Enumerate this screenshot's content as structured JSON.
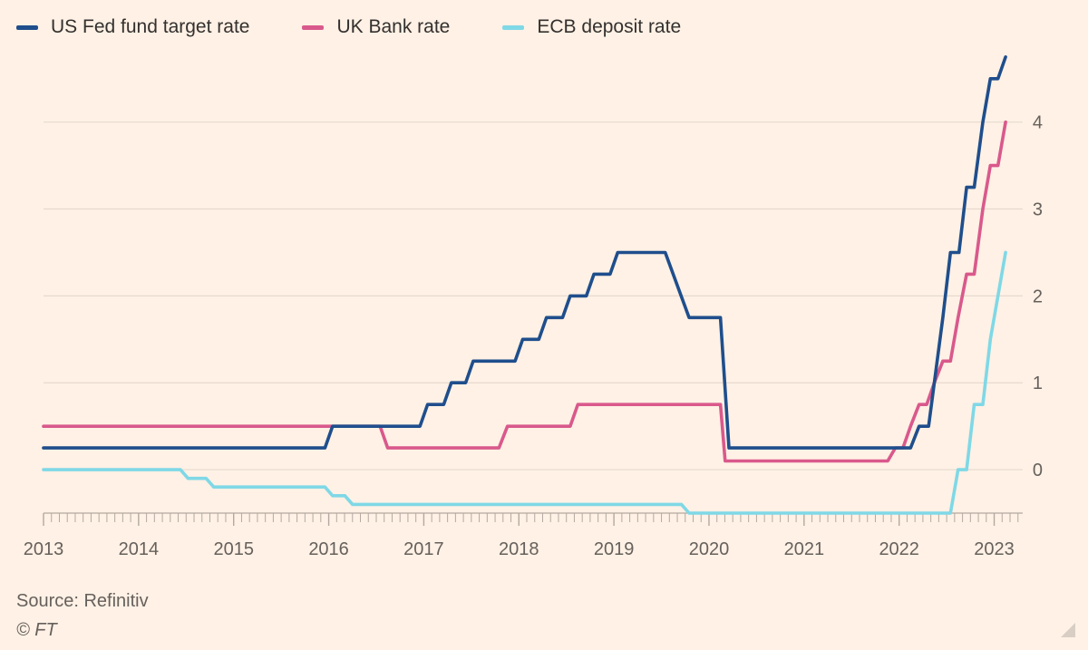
{
  "colors": {
    "background": "#FFF1E5",
    "grid": "#E6D9CE",
    "axis": "#B3A9A0",
    "text": "#66605C"
  },
  "legend": [
    {
      "name": "US Fed fund target rate",
      "color": "#1F4E8C"
    },
    {
      "name": "UK Bank rate",
      "color": "#D9598C"
    },
    {
      "name": "ECB deposit rate",
      "color": "#7FD8E6"
    }
  ],
  "source": "Source: Refinitiv",
  "copyright": "© FT",
  "chart_data": {
    "type": "line",
    "title": "",
    "xlabel": "",
    "ylabel": "",
    "xlim": [
      2013.0,
      2023.3
    ],
    "ylim": [
      -0.5,
      4.8
    ],
    "x_ticks": [
      2013,
      2014,
      2015,
      2016,
      2017,
      2018,
      2019,
      2020,
      2021,
      2022,
      2023
    ],
    "y_ticks": [
      0,
      1,
      2,
      3,
      4
    ],
    "grid": true,
    "legend_position": "top-left",
    "series": [
      {
        "name": "US Fed fund target rate",
        "color": "#1F4E8C",
        "points": [
          [
            2013.0,
            0.25
          ],
          [
            2015.96,
            0.25
          ],
          [
            2016.04,
            0.5
          ],
          [
            2016.96,
            0.5
          ],
          [
            2017.04,
            0.75
          ],
          [
            2017.21,
            0.75
          ],
          [
            2017.29,
            1.0
          ],
          [
            2017.44,
            1.0
          ],
          [
            2017.52,
            1.25
          ],
          [
            2017.96,
            1.25
          ],
          [
            2018.04,
            1.5
          ],
          [
            2018.21,
            1.5
          ],
          [
            2018.29,
            1.75
          ],
          [
            2018.46,
            1.75
          ],
          [
            2018.54,
            2.0
          ],
          [
            2018.71,
            2.0
          ],
          [
            2018.79,
            2.25
          ],
          [
            2018.96,
            2.25
          ],
          [
            2019.04,
            2.5
          ],
          [
            2019.54,
            2.5
          ],
          [
            2019.79,
            1.75
          ],
          [
            2020.12,
            1.75
          ],
          [
            2020.21,
            0.25
          ],
          [
            2022.12,
            0.25
          ],
          [
            2022.21,
            0.5
          ],
          [
            2022.31,
            0.5
          ],
          [
            2022.46,
            1.75
          ],
          [
            2022.54,
            2.5
          ],
          [
            2022.63,
            2.5
          ],
          [
            2022.71,
            3.25
          ],
          [
            2022.79,
            3.25
          ],
          [
            2022.88,
            4.0
          ],
          [
            2022.96,
            4.5
          ],
          [
            2023.04,
            4.5
          ],
          [
            2023.12,
            4.75
          ]
        ]
      },
      {
        "name": "UK Bank rate",
        "color": "#D9598C",
        "points": [
          [
            2013.0,
            0.5
          ],
          [
            2016.54,
            0.5
          ],
          [
            2016.62,
            0.25
          ],
          [
            2017.79,
            0.25
          ],
          [
            2017.88,
            0.5
          ],
          [
            2018.54,
            0.5
          ],
          [
            2018.62,
            0.75
          ],
          [
            2020.12,
            0.75
          ],
          [
            2020.17,
            0.1
          ],
          [
            2021.88,
            0.1
          ],
          [
            2021.96,
            0.25
          ],
          [
            2022.04,
            0.25
          ],
          [
            2022.12,
            0.5
          ],
          [
            2022.21,
            0.75
          ],
          [
            2022.29,
            0.75
          ],
          [
            2022.37,
            1.0
          ],
          [
            2022.46,
            1.25
          ],
          [
            2022.54,
            1.25
          ],
          [
            2022.62,
            1.75
          ],
          [
            2022.71,
            2.25
          ],
          [
            2022.79,
            2.25
          ],
          [
            2022.88,
            3.0
          ],
          [
            2022.96,
            3.5
          ],
          [
            2023.04,
            3.5
          ],
          [
            2023.12,
            4.0
          ]
        ]
      },
      {
        "name": "ECB deposit rate",
        "color": "#7FD8E6",
        "points": [
          [
            2013.0,
            0.0
          ],
          [
            2014.44,
            0.0
          ],
          [
            2014.52,
            -0.1
          ],
          [
            2014.71,
            -0.1
          ],
          [
            2014.79,
            -0.2
          ],
          [
            2015.96,
            -0.2
          ],
          [
            2016.04,
            -0.3
          ],
          [
            2016.17,
            -0.3
          ],
          [
            2016.25,
            -0.4
          ],
          [
            2019.71,
            -0.4
          ],
          [
            2019.79,
            -0.5
          ],
          [
            2022.54,
            -0.5
          ],
          [
            2022.62,
            0.0
          ],
          [
            2022.71,
            0.0
          ],
          [
            2022.79,
            0.75
          ],
          [
            2022.88,
            0.75
          ],
          [
            2022.96,
            1.5
          ],
          [
            2023.04,
            2.0
          ],
          [
            2023.12,
            2.5
          ]
        ]
      }
    ]
  }
}
